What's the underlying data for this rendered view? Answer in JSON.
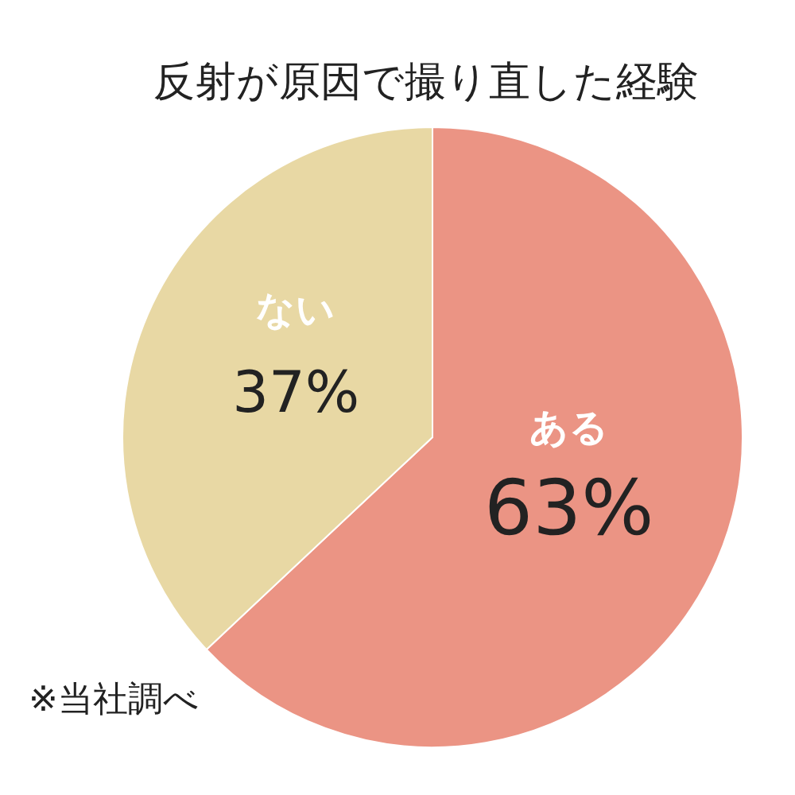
{
  "chart_data": {
    "type": "pie",
    "title": "反射が原因で撮り直した経験",
    "categories": [
      "ある",
      "ない"
    ],
    "values": [
      63,
      37
    ],
    "value_labels": [
      "63%",
      "37%"
    ],
    "colors": [
      "#eb9484",
      "#e8d8a4"
    ],
    "annotations": [
      "※当社調べ"
    ]
  }
}
